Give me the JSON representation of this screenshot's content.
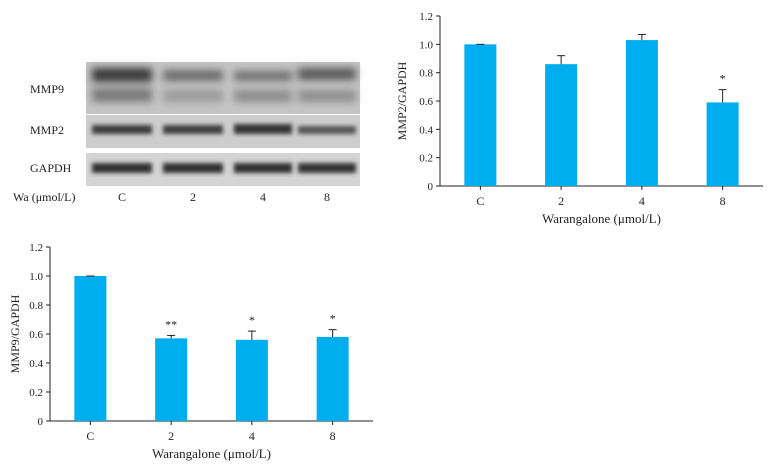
{
  "blot": {
    "row_labels": [
      "MMP9",
      "MMP2",
      "GAPDH"
    ],
    "lane_header": "Wa (μmol/L)",
    "lanes": [
      "C",
      "2",
      "4",
      "8"
    ]
  },
  "colors": {
    "bar": "#00aeef",
    "axis": "#222222"
  },
  "chart_data": [
    {
      "type": "bar",
      "panel": "top-right",
      "categories": [
        "C",
        "2",
        "4",
        "8"
      ],
      "values": [
        1.0,
        0.86,
        1.03,
        0.59
      ],
      "errors": [
        0.0,
        0.06,
        0.04,
        0.09
      ],
      "significance": [
        "",
        "",
        "",
        "*"
      ],
      "xlabel": "Warangalone (μmol/L)",
      "ylabel": "MMP2/GAPDH",
      "ylim": [
        0,
        1.2
      ],
      "yticks": [
        "0",
        "0.2",
        "0.4",
        "0.6",
        "0.8",
        "1.0",
        "1.2"
      ],
      "legend": "none",
      "grid": false
    },
    {
      "type": "bar",
      "panel": "bottom-left",
      "categories": [
        "C",
        "2",
        "4",
        "8"
      ],
      "values": [
        1.0,
        0.57,
        0.56,
        0.58
      ],
      "errors": [
        0.0,
        0.02,
        0.06,
        0.05
      ],
      "significance": [
        "",
        "**",
        "*",
        "*"
      ],
      "xlabel": "Warangalone (μmol/L)",
      "ylabel": "MMP9/GAPDH",
      "ylim": [
        0,
        1.2
      ],
      "yticks": [
        "0",
        "0.2",
        "0.4",
        "0.6",
        "0.8",
        "1.0",
        "1.2"
      ],
      "legend": "none",
      "grid": false
    }
  ]
}
